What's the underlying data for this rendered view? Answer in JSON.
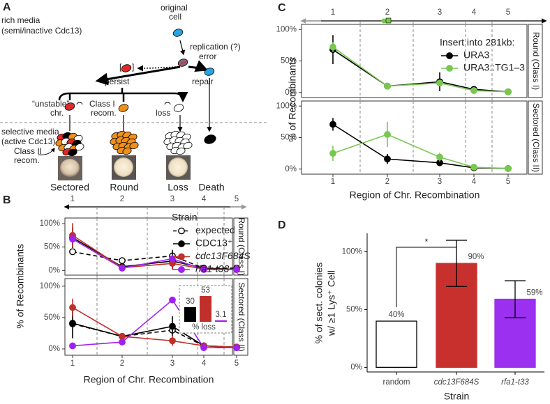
{
  "panel_labels": [
    "A",
    "B",
    "C",
    "D"
  ],
  "diagram": {
    "rich_media": [
      "rich media",
      "(semi/inactive Cdc13)"
    ],
    "original_cell": [
      "original",
      "cell"
    ],
    "replication": [
      "replication (?)",
      "error"
    ],
    "persist": "persist",
    "repair": "repair",
    "brackets": [
      "[",
      "]"
    ],
    "unstable": [
      "“unstable”",
      "chr."
    ],
    "class1": [
      "Class I",
      "recom."
    ],
    "loss": "loss",
    "selective_media": [
      "selective media",
      "(active Cdc13)"
    ],
    "class2": [
      "Class II",
      "recom."
    ],
    "outcomes": [
      "Sectored",
      "Round",
      "Loss",
      "Death"
    ]
  },
  "chart_data": [
    {
      "type": "line",
      "y_label": "% of Recombinants",
      "facet_label": "Round (Class I)",
      "legend_title": "Strain",
      "categories": [
        "1",
        "2",
        "3",
        "4",
        "5"
      ],
      "ylim": [
        -10,
        112
      ],
      "yticks": [
        {
          "value": 0,
          "label": "0%"
        },
        {
          "value": 50,
          "label": "50%"
        },
        {
          "value": 100,
          "label": "100%"
        }
      ],
      "series": [
        {
          "name": "expected",
          "color": "#000000",
          "marker": "open",
          "dashed": true,
          "italic": false,
          "values": [
            40,
            21,
            31,
            5,
            5
          ],
          "errors": [
            null,
            null,
            13,
            null,
            null
          ]
        },
        {
          "name": "CDC13⁺",
          "color": "#000000",
          "marker": "filled",
          "dashed": false,
          "italic": false,
          "values": [
            70,
            8,
            20,
            5,
            2
          ],
          "errors": [
            22,
            4,
            18,
            3,
            2
          ]
        },
        {
          "name": "cdc13F684S",
          "color": "#c0302a",
          "marker": "filled",
          "dashed": false,
          "italic": true,
          "values": [
            75,
            6,
            15,
            3,
            2
          ],
          "errors": [
            26,
            3,
            12,
            2,
            1
          ]
        },
        {
          "name": "rfa1-t33",
          "color": "#a020f0",
          "marker": "filled",
          "dashed": false,
          "italic": true,
          "values": [
            67,
            5,
            25,
            2,
            2
          ],
          "errors": [
            10,
            3,
            8,
            2,
            1
          ]
        }
      ]
    },
    {
      "type": "line",
      "x_label": "Region of Chr. Recombination",
      "facet_label": "Sectored (Class II)",
      "categories": [
        "1",
        "2",
        "3",
        "4",
        "5"
      ],
      "ylim": [
        -10,
        112
      ],
      "yticks": [
        {
          "value": 0,
          "label": "0%"
        },
        {
          "value": 50,
          "label": "50%"
        },
        {
          "value": 100,
          "label": "100%"
        }
      ],
      "series": [
        {
          "color": "#000000",
          "marker": "open",
          "dashed": true,
          "values": [
            40,
            20,
            30,
            5,
            3
          ],
          "errors": [
            null,
            null,
            null,
            null,
            null
          ]
        },
        {
          "color": "#000000",
          "marker": "filled",
          "dashed": false,
          "values": [
            41,
            20,
            36,
            5,
            2
          ],
          "errors": [
            24,
            4,
            16,
            3,
            2
          ]
        },
        {
          "color": "#c0302a",
          "marker": "filled",
          "dashed": false,
          "values": [
            66,
            20,
            13,
            5,
            3
          ],
          "errors": [
            14,
            4,
            8,
            3,
            2
          ]
        },
        {
          "color": "#a020f0",
          "marker": "filled",
          "dashed": false,
          "values": [
            5,
            11,
            78,
            2,
            2
          ],
          "errors": [
            null,
            null,
            null,
            null,
            null
          ]
        }
      ],
      "inset": {
        "type": "bar",
        "x_label": "% loss",
        "values": [
          30,
          53,
          3.1
        ],
        "colors": [
          "#000000",
          "#c0302a",
          "#a020f0"
        ]
      }
    },
    {
      "type": "line",
      "y_label": "% of Recombinants",
      "facet_label": "Round (Class I)",
      "legend_title": "Insert into 281kb:",
      "categories": [
        "1",
        "2",
        "3",
        "4",
        "5"
      ],
      "ylim": [
        -8,
        108
      ],
      "yticks": [
        {
          "value": 0,
          "label": "0%"
        },
        {
          "value": 50,
          "label": "50%"
        },
        {
          "value": 100,
          "label": "100%"
        }
      ],
      "series": [
        {
          "name": "URA3",
          "color": "#000000",
          "marker": "filled",
          "dashed": false,
          "italic": false,
          "values": [
            68,
            10,
            17,
            5,
            1
          ],
          "errors": [
            23,
            4,
            15,
            3,
            1
          ]
        },
        {
          "name": "URA3::TG1–3",
          "color": "#78c850",
          "marker": "filled",
          "dashed": false,
          "italic": false,
          "values": [
            72,
            10,
            15,
            3,
            1
          ],
          "errors": [
            8,
            3,
            5,
            2,
            1
          ]
        }
      ]
    },
    {
      "type": "line",
      "x_label": "Region of Chr. Recombination",
      "facet_label": "Sectored (Class II)",
      "categories": [
        "1",
        "2",
        "3",
        "4",
        "5"
      ],
      "ylim": [
        -8,
        108
      ],
      "yticks": [
        {
          "value": 0,
          "label": "0%"
        },
        {
          "value": 50,
          "label": "50%"
        },
        {
          "value": 100,
          "label": "100%"
        }
      ],
      "series": [
        {
          "color": "#000000",
          "marker": "filled",
          "dashed": false,
          "values": [
            71,
            16,
            10,
            2,
            1
          ],
          "errors": [
            10,
            8,
            3,
            2,
            1
          ]
        },
        {
          "color": "#78c850",
          "marker": "filled",
          "dashed": false,
          "values": [
            25,
            55,
            19,
            3,
            1
          ],
          "errors": [
            12,
            20,
            7,
            2,
            1
          ]
        }
      ]
    },
    {
      "type": "bar",
      "y_label": [
        "% of sect. colonies",
        "w/ ≥1 Lys⁺ Cell"
      ],
      "x_label": "Strain",
      "significance": "*",
      "categories": [
        "random",
        "cdc13F684S",
        "rfa1-t33"
      ],
      "italic": [
        false,
        true,
        true
      ],
      "values": [
        40,
        90,
        59
      ],
      "value_labels": [
        "40%",
        "90%",
        "59%"
      ],
      "errors": [
        null,
        20,
        16
      ],
      "colors": [
        "#ffffff",
        "#c8302e",
        "#9b30f0"
      ],
      "ylim": [
        -4,
        116
      ],
      "yticks": [
        {
          "value": 0,
          "label": "0%"
        },
        {
          "value": 50,
          "label": "50%"
        },
        {
          "value": 100,
          "label": "100%"
        }
      ]
    }
  ]
}
